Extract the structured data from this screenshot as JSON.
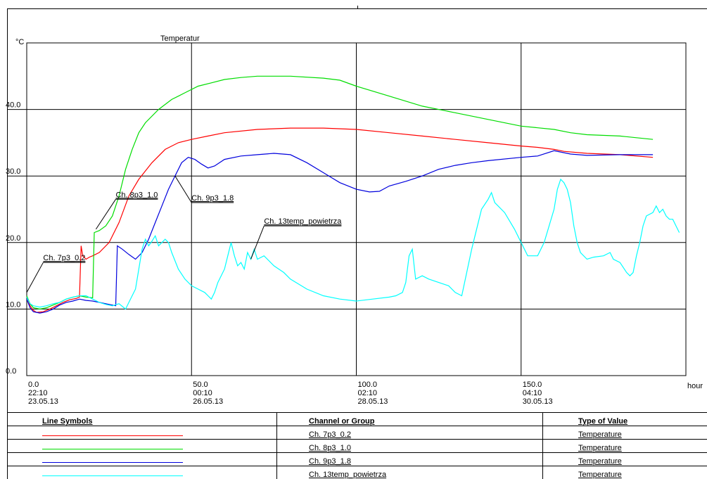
{
  "chart_data": {
    "type": "line",
    "title": "Temperatur",
    "ylabel": "°C",
    "xlabel": "hour",
    "xlim": [
      0,
      200
    ],
    "ylim": [
      0,
      50
    ],
    "grid": true,
    "y_ticks": [
      "0.0",
      "10.0",
      "20.0",
      "30.0",
      "40.0"
    ],
    "y_tick_values": [
      0,
      10,
      20,
      30,
      40
    ],
    "x_ticks": [
      {
        "value": 0,
        "lines": [
          "0.0",
          "22:10",
          "23.05.13"
        ]
      },
      {
        "value": 50,
        "lines": [
          "50.0",
          "00:10",
          "26.05.13"
        ]
      },
      {
        "value": 100,
        "lines": [
          "100.0",
          "02:10",
          "28.05.13"
        ]
      },
      {
        "value": 150,
        "lines": [
          "150.0",
          "04:10",
          "30.05.13"
        ]
      }
    ],
    "series": [
      {
        "name": "Ch. 7p3_0.2",
        "color": "#ff0000",
        "label_text": "Ch. 7p3_0.2",
        "label_anchor": [
          0,
          12.5
        ],
        "label_pos": [
          5,
          17
        ],
        "points": [
          [
            0,
            12
          ],
          [
            1,
            10.5
          ],
          [
            2,
            9.8
          ],
          [
            3,
            9.5
          ],
          [
            5,
            9.6
          ],
          [
            7,
            10
          ],
          [
            9,
            10.5
          ],
          [
            11,
            11
          ],
          [
            13,
            11.4
          ],
          [
            15,
            11.6
          ],
          [
            16,
            11.8
          ],
          [
            16.5,
            19.5
          ],
          [
            17,
            18
          ],
          [
            18,
            17.5
          ],
          [
            19,
            17.8
          ],
          [
            20,
            18
          ],
          [
            22,
            18.5
          ],
          [
            25,
            20
          ],
          [
            28,
            23
          ],
          [
            31,
            27
          ],
          [
            34,
            29.5
          ],
          [
            38,
            32
          ],
          [
            42,
            34
          ],
          [
            46,
            35
          ],
          [
            50,
            35.5
          ],
          [
            55,
            36
          ],
          [
            60,
            36.5
          ],
          [
            70,
            37
          ],
          [
            80,
            37.2
          ],
          [
            90,
            37.2
          ],
          [
            100,
            37
          ],
          [
            110,
            36.5
          ],
          [
            120,
            36
          ],
          [
            130,
            35.5
          ],
          [
            140,
            35
          ],
          [
            150,
            34.5
          ],
          [
            155,
            34.3
          ],
          [
            160,
            34
          ],
          [
            163,
            33.7
          ],
          [
            170,
            33.4
          ],
          [
            180,
            33.2
          ],
          [
            190,
            32.8
          ]
        ]
      },
      {
        "name": "Ch. 8p3_1.0",
        "color": "#00dd00",
        "label_text": "Ch. 8p3_1.0",
        "label_anchor": [
          21,
          22
        ],
        "label_pos": [
          27,
          26.5
        ],
        "points": [
          [
            0,
            12
          ],
          [
            1,
            10.8
          ],
          [
            2,
            10.2
          ],
          [
            4,
            10
          ],
          [
            6,
            10.2
          ],
          [
            8,
            10.6
          ],
          [
            10,
            11
          ],
          [
            12,
            11.5
          ],
          [
            14,
            11.8
          ],
          [
            16,
            12
          ],
          [
            18,
            11.8
          ],
          [
            20,
            11.7
          ],
          [
            20.5,
            21.5
          ],
          [
            22,
            21.8
          ],
          [
            24,
            22.5
          ],
          [
            26,
            24
          ],
          [
            28,
            27
          ],
          [
            30,
            31
          ],
          [
            32,
            34
          ],
          [
            34,
            36.5
          ],
          [
            36,
            38
          ],
          [
            40,
            40
          ],
          [
            44,
            41.5
          ],
          [
            48,
            42.5
          ],
          [
            52,
            43.5
          ],
          [
            56,
            44
          ],
          [
            60,
            44.5
          ],
          [
            65,
            44.8
          ],
          [
            70,
            45
          ],
          [
            80,
            45
          ],
          [
            90,
            44.7
          ],
          [
            95,
            44.4
          ],
          [
            100,
            43.5
          ],
          [
            110,
            42
          ],
          [
            120,
            40.5
          ],
          [
            130,
            39.5
          ],
          [
            140,
            38.5
          ],
          [
            150,
            37.5
          ],
          [
            160,
            37
          ],
          [
            165,
            36.5
          ],
          [
            170,
            36.2
          ],
          [
            180,
            36
          ],
          [
            190,
            35.5
          ]
        ]
      },
      {
        "name": "Ch. 9p3_1.8",
        "color": "#0000dd",
        "label_text": "Ch. 9p3_1.8",
        "label_anchor": [
          45,
          30
        ],
        "label_pos": [
          50,
          26
        ],
        "points": [
          [
            0,
            11.5
          ],
          [
            1,
            10.2
          ],
          [
            2,
            9.6
          ],
          [
            4,
            9.4
          ],
          [
            6,
            9.6
          ],
          [
            8,
            10
          ],
          [
            10,
            10.6
          ],
          [
            12,
            11
          ],
          [
            14,
            11.2
          ],
          [
            16,
            11.5
          ],
          [
            18,
            11.3
          ],
          [
            20,
            11.2
          ],
          [
            22,
            11
          ],
          [
            24,
            10.8
          ],
          [
            27,
            10.5
          ],
          [
            27.5,
            19.5
          ],
          [
            29,
            19
          ],
          [
            31,
            18.2
          ],
          [
            33,
            17.5
          ],
          [
            35,
            18.5
          ],
          [
            37,
            20.5
          ],
          [
            39,
            23
          ],
          [
            41,
            25.5
          ],
          [
            43,
            28
          ],
          [
            45,
            30
          ],
          [
            47,
            32
          ],
          [
            49,
            32.8
          ],
          [
            51,
            32.5
          ],
          [
            53,
            31.8
          ],
          [
            55,
            31.2
          ],
          [
            57,
            31.5
          ],
          [
            60,
            32.5
          ],
          [
            65,
            33
          ],
          [
            70,
            33.2
          ],
          [
            75,
            33.4
          ],
          [
            80,
            33.2
          ],
          [
            85,
            32
          ],
          [
            90,
            30.5
          ],
          [
            95,
            29
          ],
          [
            100,
            28
          ],
          [
            104,
            27.6
          ],
          [
            107,
            27.7
          ],
          [
            110,
            28.5
          ],
          [
            115,
            29.2
          ],
          [
            120,
            30
          ],
          [
            125,
            31
          ],
          [
            130,
            31.6
          ],
          [
            135,
            32
          ],
          [
            140,
            32.3
          ],
          [
            150,
            32.8
          ],
          [
            155,
            33
          ],
          [
            160,
            33.8
          ],
          [
            165,
            33.3
          ],
          [
            170,
            33.1
          ],
          [
            180,
            33.2
          ],
          [
            190,
            33.2
          ]
        ]
      },
      {
        "name": "Ch. 13temp_powietrza",
        "color": "#00ffff",
        "label_text": "Ch. 13temp_powietrza",
        "label_anchor": [
          68,
          17.5
        ],
        "label_pos": [
          72,
          22.5
        ],
        "points": [
          [
            0,
            11.8
          ],
          [
            1,
            10.8
          ],
          [
            2,
            10.5
          ],
          [
            4,
            10.3
          ],
          [
            6,
            10.5
          ],
          [
            8,
            10.8
          ],
          [
            10,
            11
          ],
          [
            12,
            11.5
          ],
          [
            14,
            11.8
          ],
          [
            16,
            12
          ],
          [
            18,
            12
          ],
          [
            20,
            11.5
          ],
          [
            22,
            11
          ],
          [
            24,
            10.7
          ],
          [
            26,
            10.5
          ],
          [
            28,
            10.8
          ],
          [
            29,
            10.4
          ],
          [
            30,
            10
          ],
          [
            31,
            11
          ],
          [
            33,
            13
          ],
          [
            34,
            16
          ],
          [
            35,
            19
          ],
          [
            36,
            20.5
          ],
          [
            37,
            19.5
          ],
          [
            38,
            20.2
          ],
          [
            39,
            21
          ],
          [
            40,
            19.5
          ],
          [
            41,
            20
          ],
          [
            42,
            20.5
          ],
          [
            43,
            20
          ],
          [
            44,
            18.5
          ],
          [
            46,
            16
          ],
          [
            48,
            14.5
          ],
          [
            50,
            13.5
          ],
          [
            52,
            13
          ],
          [
            54,
            12.5
          ],
          [
            55,
            12
          ],
          [
            56,
            11.5
          ],
          [
            57,
            12.5
          ],
          [
            58,
            14
          ],
          [
            60,
            16
          ],
          [
            61,
            18
          ],
          [
            62,
            20
          ],
          [
            63,
            18
          ],
          [
            64,
            16.5
          ],
          [
            65,
            17
          ],
          [
            66,
            16
          ],
          [
            67,
            18.5
          ],
          [
            68,
            17.5
          ],
          [
            69,
            19
          ],
          [
            70,
            17.5
          ],
          [
            72,
            18
          ],
          [
            75,
            16.5
          ],
          [
            78,
            15.5
          ],
          [
            80,
            14.5
          ],
          [
            85,
            13
          ],
          [
            90,
            12
          ],
          [
            95,
            11.5
          ],
          [
            100,
            11.2
          ],
          [
            105,
            11.5
          ],
          [
            110,
            11.8
          ],
          [
            112,
            12
          ],
          [
            114,
            12.5
          ],
          [
            115,
            14
          ],
          [
            116,
            18
          ],
          [
            117,
            19
          ],
          [
            118,
            14.5
          ],
          [
            120,
            15
          ],
          [
            122,
            14.5
          ],
          [
            125,
            14
          ],
          [
            128,
            13.5
          ],
          [
            130,
            12.5
          ],
          [
            132,
            12
          ],
          [
            135,
            19
          ],
          [
            138,
            25
          ],
          [
            140,
            26.5
          ],
          [
            141,
            27.5
          ],
          [
            142,
            26
          ],
          [
            145,
            24.5
          ],
          [
            148,
            22
          ],
          [
            150,
            20
          ],
          [
            152,
            18
          ],
          [
            155,
            18
          ],
          [
            157,
            20
          ],
          [
            160,
            25
          ],
          [
            161,
            28
          ],
          [
            162,
            29.5
          ],
          [
            163,
            29
          ],
          [
            164,
            28
          ],
          [
            165,
            26
          ],
          [
            166,
            22.5
          ],
          [
            167,
            20
          ],
          [
            168,
            18.5
          ],
          [
            170,
            17.5
          ],
          [
            172,
            17.8
          ],
          [
            175,
            18
          ],
          [
            177,
            18.5
          ],
          [
            178,
            17.5
          ],
          [
            180,
            17
          ],
          [
            182,
            15.5
          ],
          [
            183,
            15
          ],
          [
            184,
            15.5
          ],
          [
            185,
            18
          ],
          [
            186,
            20
          ],
          [
            187,
            22.5
          ],
          [
            188,
            24
          ],
          [
            190,
            24.5
          ],
          [
            191,
            25.5
          ],
          [
            192,
            24.5
          ],
          [
            193,
            25
          ],
          [
            194,
            24
          ],
          [
            195,
            23.5
          ],
          [
            196,
            23.5
          ],
          [
            197,
            22.5
          ],
          [
            198,
            21.5
          ]
        ]
      }
    ]
  },
  "legend_table": {
    "headers": {
      "symbols": "Line Symbols",
      "channel": "Channel or Group",
      "type": "Type of Value"
    },
    "rows": [
      {
        "channel": "Ch. 7p3_0.2",
        "type": "Temperature",
        "color": "#ff0000"
      },
      {
        "channel": "Ch. 8p3_1.0",
        "type": "Temperature",
        "color": "#00dd00"
      },
      {
        "channel": "Ch. 9p3_1.8",
        "type": "Temperature",
        "color": "#0000dd"
      },
      {
        "channel": "Ch. 13temp_powietrza",
        "type": "Temperature",
        "color": "#00ffff"
      }
    ]
  }
}
